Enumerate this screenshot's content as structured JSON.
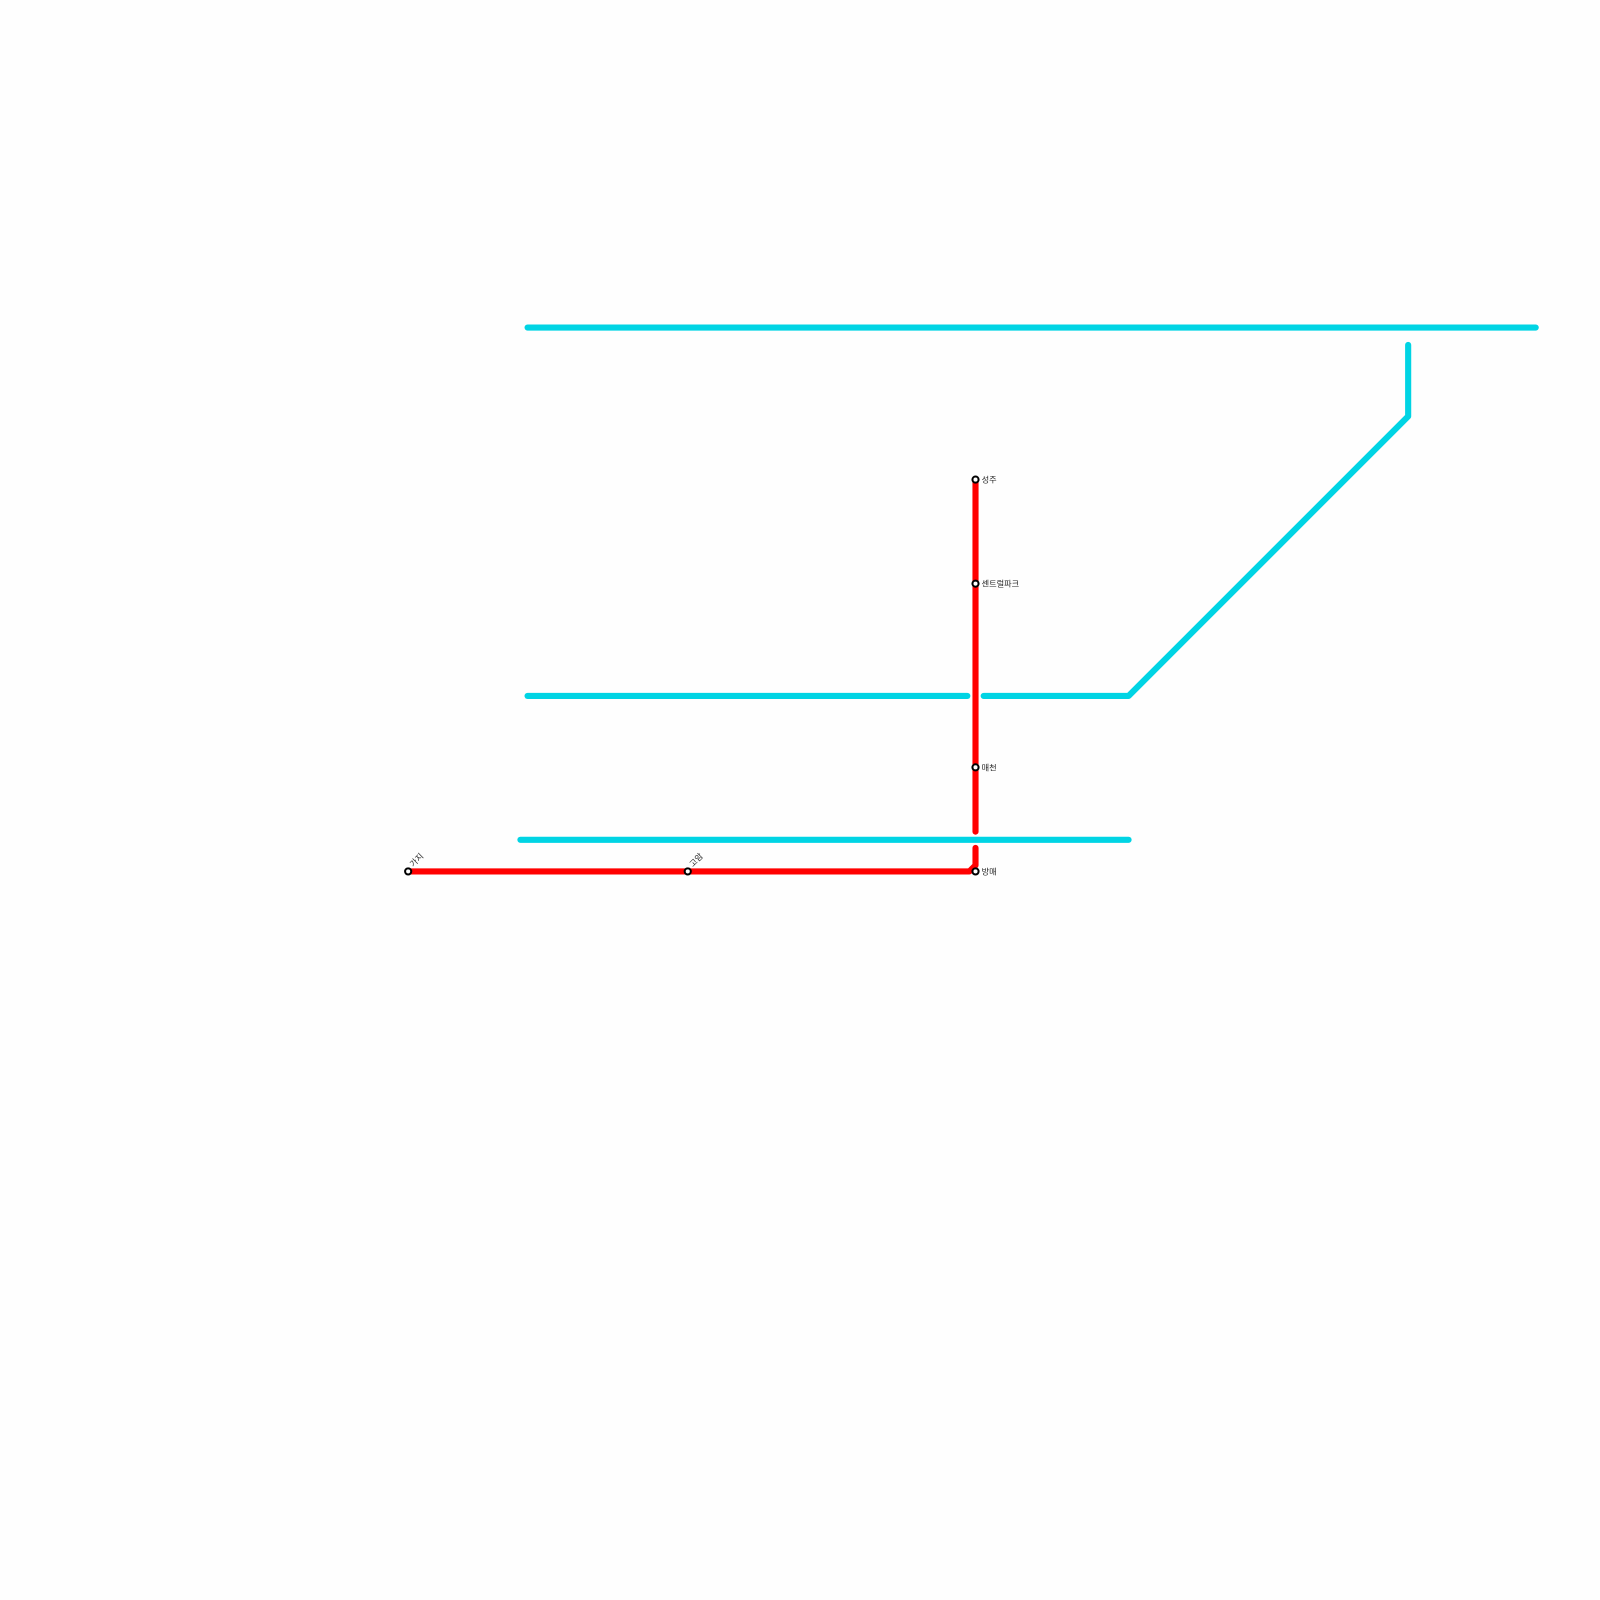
{
  "lines": [
    {
      "name": "cyan-line",
      "color": "#00d4e4"
    },
    {
      "name": "red-line",
      "color": "#ff0000"
    }
  ],
  "stations": [
    {
      "id": "seongju",
      "label": "성주"
    },
    {
      "id": "central-park",
      "label": "센트럴파크"
    },
    {
      "id": "maecheon",
      "label": "매천"
    },
    {
      "id": "bangmae",
      "label": "방매"
    },
    {
      "id": "goam",
      "label": "고암"
    },
    {
      "id": "gaji",
      "label": "가지"
    }
  ]
}
